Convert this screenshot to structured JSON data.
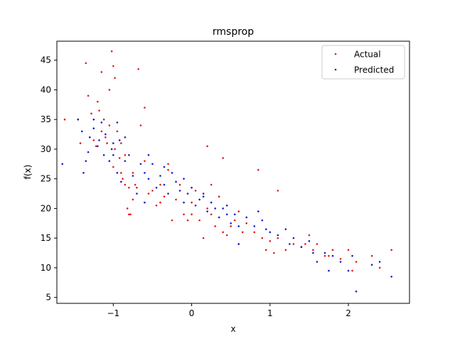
{
  "chart_data": {
    "type": "scatter",
    "title": "rmsprop",
    "xlabel": "x",
    "ylabel": "f(x)",
    "xlim": [
      -1.72,
      2.78
    ],
    "ylim": [
      4.0,
      48.2
    ],
    "xticks": [
      -1,
      0,
      1,
      2
    ],
    "yticks": [
      5,
      10,
      15,
      20,
      25,
      30,
      35,
      40,
      45
    ],
    "grid": false,
    "legend": "top-right",
    "series": [
      {
        "name": "Actual",
        "color": "#e41a1c",
        "x": [
          -1.62,
          -1.45,
          -1.42,
          -1.35,
          -1.3,
          -1.28,
          -1.25,
          -1.22,
          -1.2,
          -1.18,
          -1.15,
          -1.12,
          -1.1,
          -1.08,
          -1.05,
          -1.02,
          -1.0,
          -0.98,
          -0.95,
          -0.92,
          -0.9,
          -0.88,
          -0.85,
          -0.82,
          -0.8,
          -0.78,
          -0.75,
          -0.72,
          -0.7,
          -0.65,
          -0.6,
          -0.55,
          -0.5,
          -0.45,
          -0.4,
          -0.35,
          -0.3,
          -0.25,
          -0.2,
          -0.15,
          -0.1,
          -0.05,
          0.0,
          0.05,
          0.1,
          0.15,
          0.2,
          0.25,
          0.3,
          0.35,
          0.4,
          0.45,
          0.5,
          0.55,
          0.6,
          0.65,
          0.7,
          0.8,
          0.9,
          0.95,
          1.0,
          1.05,
          1.1,
          1.2,
          1.3,
          1.4,
          1.5,
          1.55,
          1.6,
          1.7,
          1.8,
          1.9,
          2.0,
          2.05,
          2.1,
          2.3,
          2.4,
          2.55,
          -1.32,
          -1.05,
          -1.0,
          -0.98,
          -1.15,
          -0.68,
          -0.6,
          -0.9,
          -0.85,
          -0.4,
          -0.3,
          0.2,
          0.4,
          0.85,
          1.1,
          -0.8,
          -0.75,
          0.0,
          0.25,
          0.6,
          1.45,
          1.75
        ],
        "y": [
          35.0,
          35.0,
          31.0,
          44.5,
          32.0,
          36.0,
          31.5,
          30.5,
          38.0,
          36.5,
          33.0,
          35.0,
          32.0,
          31.0,
          34.0,
          46.5,
          27.0,
          30.0,
          33.0,
          28.5,
          31.0,
          25.0,
          29.0,
          20.0,
          23.5,
          19.0,
          26.0,
          24.0,
          23.5,
          34.0,
          28.0,
          22.5,
          23.0,
          20.5,
          24.0,
          22.0,
          27.5,
          18.0,
          21.5,
          24.0,
          19.0,
          18.0,
          21.0,
          23.0,
          18.0,
          15.0,
          20.0,
          19.0,
          17.0,
          22.0,
          16.0,
          15.5,
          17.0,
          18.0,
          14.0,
          16.0,
          17.5,
          16.0,
          15.0,
          13.0,
          14.5,
          12.5,
          15.0,
          13.0,
          14.0,
          13.5,
          15.5,
          13.0,
          14.0,
          12.0,
          13.0,
          11.5,
          13.0,
          9.5,
          11.0,
          12.0,
          10.0,
          13.0,
          39.0,
          40.0,
          44.0,
          42.0,
          43.0,
          43.5,
          37.0,
          26.0,
          24.0,
          21.0,
          26.5,
          30.5,
          28.5,
          26.5,
          23.0,
          19.0,
          21.5,
          19.0,
          24.0,
          19.5,
          14.0,
          12.0
        ]
      },
      {
        "name": "Predicted",
        "color": "#1c1cc8",
        "x": [
          -1.65,
          -1.45,
          -1.4,
          -1.38,
          -1.32,
          -1.3,
          -1.25,
          -1.2,
          -1.18,
          -1.15,
          -1.12,
          -1.1,
          -1.05,
          -1.02,
          -1.0,
          -0.95,
          -0.92,
          -0.9,
          -0.85,
          -0.8,
          -0.75,
          -0.7,
          -0.65,
          -0.6,
          -0.55,
          -0.5,
          -0.45,
          -0.4,
          -0.35,
          -0.3,
          -0.25,
          -0.2,
          -0.15,
          -0.1,
          -0.05,
          0.0,
          0.05,
          0.1,
          0.15,
          0.2,
          0.25,
          0.3,
          0.35,
          0.4,
          0.45,
          0.5,
          0.55,
          0.6,
          0.7,
          0.8,
          0.9,
          0.95,
          1.0,
          1.1,
          1.2,
          1.3,
          1.4,
          1.5,
          1.6,
          1.7,
          1.8,
          1.9,
          2.0,
          2.05,
          2.1,
          2.3,
          2.4,
          2.55,
          -1.35,
          -1.25,
          -0.95,
          -0.85,
          -0.55,
          -0.35,
          -0.1,
          0.15,
          0.45,
          0.85,
          1.25,
          1.55,
          -1.0,
          -0.6,
          0.6,
          1.75
        ],
        "y": [
          27.5,
          35.0,
          33.0,
          26.0,
          29.5,
          32.0,
          33.5,
          30.5,
          31.5,
          34.5,
          29.0,
          32.5,
          28.0,
          30.0,
          29.0,
          26.0,
          31.5,
          24.5,
          28.0,
          29.0,
          25.5,
          22.5,
          27.5,
          26.0,
          25.0,
          27.5,
          23.5,
          25.5,
          24.0,
          22.5,
          26.0,
          24.5,
          23.0,
          21.0,
          22.5,
          23.5,
          20.5,
          21.5,
          22.0,
          19.5,
          21.0,
          20.0,
          18.5,
          20.0,
          19.0,
          17.5,
          19.0,
          17.0,
          18.5,
          17.0,
          18.0,
          16.5,
          16.0,
          15.5,
          16.5,
          15.0,
          13.5,
          14.5,
          11.0,
          12.5,
          12.0,
          11.0,
          9.5,
          12.0,
          6.0,
          10.5,
          11.0,
          8.5,
          28.0,
          35.0,
          34.5,
          32.0,
          29.0,
          27.0,
          25.0,
          22.5,
          20.5,
          19.5,
          14.0,
          12.5,
          31.0,
          21.0,
          14.0,
          9.5
        ]
      }
    ]
  }
}
